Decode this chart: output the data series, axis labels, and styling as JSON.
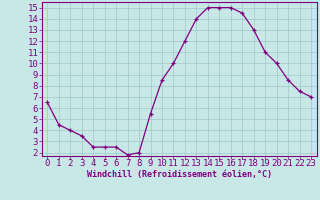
{
  "x": [
    0,
    1,
    2,
    3,
    4,
    5,
    6,
    7,
    8,
    9,
    10,
    11,
    12,
    13,
    14,
    15,
    16,
    17,
    18,
    19,
    20,
    21,
    22,
    23
  ],
  "y": [
    6.5,
    4.5,
    4.0,
    3.5,
    2.5,
    2.5,
    2.5,
    1.8,
    2.0,
    5.5,
    8.5,
    10.0,
    12.0,
    14.0,
    15.0,
    15.0,
    15.0,
    14.5,
    13.0,
    11.0,
    10.0,
    8.5,
    7.5,
    7.0
  ],
  "line_color": "#800080",
  "marker": "+",
  "marker_size": 3,
  "bg_color": "#c8e8e8",
  "grid_color": "#a0c8c8",
  "xlabel": "Windchill (Refroidissement éolien,°C)",
  "xlabel_color": "#800080",
  "tick_color": "#800080",
  "ylim": [
    1.7,
    15.5
  ],
  "xlim": [
    -0.5,
    23.5
  ],
  "yticks": [
    2,
    3,
    4,
    5,
    6,
    7,
    8,
    9,
    10,
    11,
    12,
    13,
    14,
    15
  ],
  "xticks": [
    0,
    1,
    2,
    3,
    4,
    5,
    6,
    7,
    8,
    9,
    10,
    11,
    12,
    13,
    14,
    15,
    16,
    17,
    18,
    19,
    20,
    21,
    22,
    23
  ],
  "spine_color": "#800080",
  "font_size": 6.5
}
